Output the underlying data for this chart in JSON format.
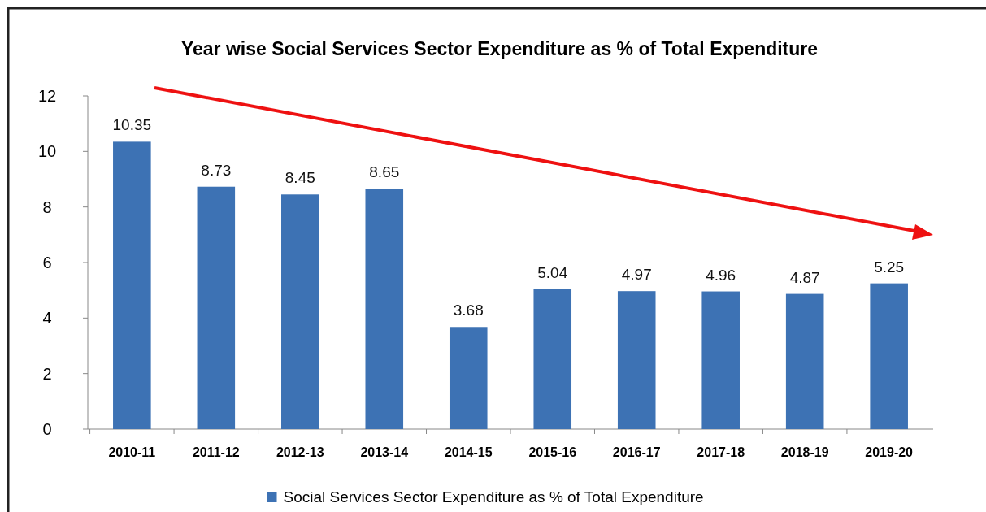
{
  "chart_data": {
    "type": "bar",
    "title": "Year wise Social Services Sector Expenditure as % of Total Expenditure",
    "categories": [
      "2010-11",
      "2011-12",
      "2012-13",
      "2013-14",
      "2014-15",
      "2015-16",
      "2016-17",
      "2017-18",
      "2018-19",
      "2019-20"
    ],
    "series": [
      {
        "name": "Social Services Sector Expenditure as % of Total Expenditure",
        "color": "#3d72b4",
        "values": [
          10.35,
          8.73,
          8.45,
          8.65,
          3.68,
          5.04,
          4.97,
          4.96,
          4.87,
          5.25
        ]
      }
    ],
    "ylim": [
      0,
      12
    ],
    "yticks": [
      0,
      2,
      4,
      6,
      8,
      10,
      12
    ],
    "data_labels": true,
    "legend": "bottom"
  }
}
